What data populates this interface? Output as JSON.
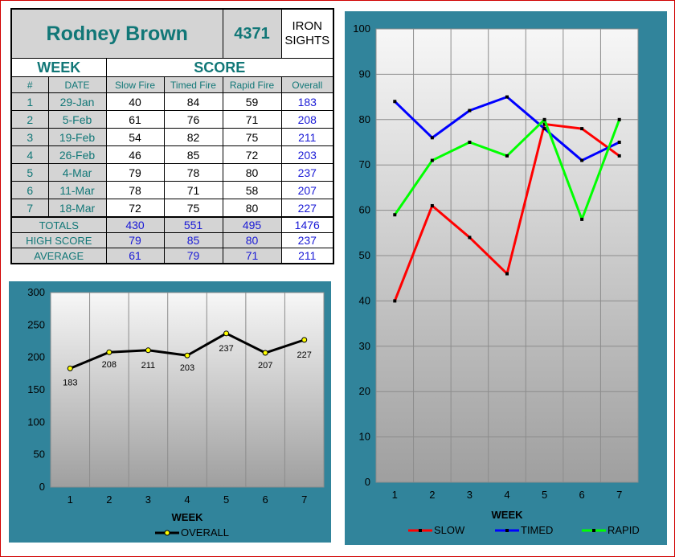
{
  "shooter": {
    "name": "Rodney Brown",
    "id": "4371",
    "sights_line1": "IRON",
    "sights_line2": "SIGHTS"
  },
  "table": {
    "week_header": "WEEK",
    "score_header": "SCORE",
    "columns": [
      "#",
      "DATE",
      "Slow Fire",
      "Timed Fire",
      "Rapid Fire",
      "Overall"
    ],
    "rows": [
      {
        "num": "1",
        "date": "29-Jan",
        "slow": "40",
        "timed": "84",
        "rapid": "59",
        "overall": "183"
      },
      {
        "num": "2",
        "date": "5-Feb",
        "slow": "61",
        "timed": "76",
        "rapid": "71",
        "overall": "208"
      },
      {
        "num": "3",
        "date": "19-Feb",
        "slow": "54",
        "timed": "82",
        "rapid": "75",
        "overall": "211"
      },
      {
        "num": "4",
        "date": "26-Feb",
        "slow": "46",
        "timed": "85",
        "rapid": "72",
        "overall": "203"
      },
      {
        "num": "5",
        "date": "4-Mar",
        "slow": "79",
        "timed": "78",
        "rapid": "80",
        "overall": "237"
      },
      {
        "num": "6",
        "date": "11-Mar",
        "slow": "78",
        "timed": "71",
        "rapid": "58",
        "overall": "207"
      },
      {
        "num": "7",
        "date": "18-Mar",
        "slow": "72",
        "timed": "75",
        "rapid": "80",
        "overall": "227"
      }
    ],
    "summary": [
      {
        "label": "TOTALS",
        "slow": "430",
        "timed": "551",
        "rapid": "495",
        "overall": "1476"
      },
      {
        "label": "HIGH SCORE",
        "slow": "79",
        "timed": "85",
        "rapid": "80",
        "overall": "237"
      },
      {
        "label": "AVERAGE",
        "slow": "61",
        "timed": "79",
        "rapid": "71",
        "overall": "211"
      }
    ]
  },
  "chart_data": [
    {
      "type": "line",
      "xlabel": "WEEK",
      "ylabel": "",
      "x": [
        1,
        2,
        3,
        4,
        5,
        6,
        7
      ],
      "ylim": [
        0,
        300
      ],
      "yticks": [
        0,
        50,
        100,
        150,
        200,
        250,
        300
      ],
      "grid": true,
      "legend": "bottom",
      "series": [
        {
          "name": "OVERALL",
          "values": [
            183,
            208,
            211,
            203,
            237,
            207,
            227
          ],
          "color": "#000000",
          "marker_color": "#ffff00"
        }
      ],
      "data_labels": [
        "183",
        "208",
        "211",
        "203",
        "237",
        "207",
        "227"
      ]
    },
    {
      "type": "line",
      "xlabel": "WEEK",
      "ylabel": "",
      "x": [
        1,
        2,
        3,
        4,
        5,
        6,
        7
      ],
      "ylim": [
        0,
        100
      ],
      "yticks": [
        0,
        10,
        20,
        30,
        40,
        50,
        60,
        70,
        80,
        90,
        100
      ],
      "grid": true,
      "legend": "bottom",
      "series": [
        {
          "name": "SLOW",
          "values": [
            40,
            61,
            54,
            46,
            79,
            78,
            72
          ],
          "color": "#ff0000"
        },
        {
          "name": "TIMED",
          "values": [
            84,
            76,
            82,
            85,
            78,
            71,
            75
          ],
          "color": "#0000ff"
        },
        {
          "name": "RAPID",
          "values": [
            59,
            71,
            75,
            72,
            80,
            58,
            80
          ],
          "color": "#00ff00"
        }
      ]
    }
  ]
}
